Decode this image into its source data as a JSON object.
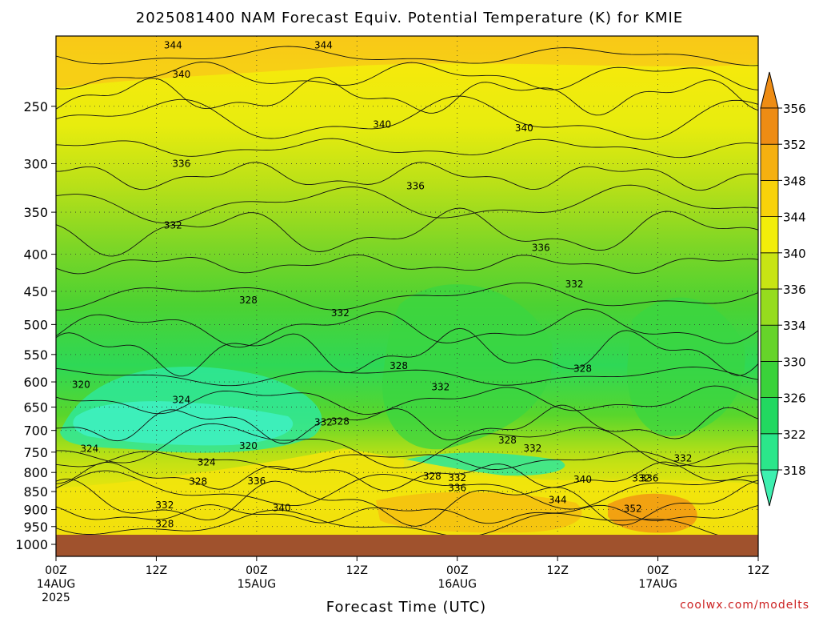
{
  "chart_data": {
    "type": "heatmap",
    "title": "2025081400 NAM Forecast Equiv. Potential Temperature (K) for KMIE",
    "xlabel": "Forecast Time (UTC)",
    "ylabel": "",
    "credit": "coolwx.com/modelts",
    "y_scale": "log",
    "ylim": [
      1000,
      200
    ],
    "yticks": [
      250,
      300,
      350,
      400,
      450,
      500,
      550,
      600,
      650,
      700,
      750,
      800,
      850,
      900,
      950,
      1000
    ],
    "xlim": [
      0,
      84
    ],
    "xticks": [
      {
        "hour": 0,
        "lines": [
          "00Z",
          "14AUG",
          "2025"
        ]
      },
      {
        "hour": 12,
        "lines": [
          "12Z"
        ]
      },
      {
        "hour": 24,
        "lines": [
          "00Z",
          "15AUG"
        ]
      },
      {
        "hour": 36,
        "lines": [
          "12Z"
        ]
      },
      {
        "hour": 48,
        "lines": [
          "00Z",
          "16AUG"
        ]
      },
      {
        "hour": 60,
        "lines": [
          "12Z"
        ]
      },
      {
        "hour": 72,
        "lines": [
          "00Z",
          "17AUG"
        ]
      },
      {
        "hour": 84,
        "lines": [
          "12Z"
        ]
      }
    ],
    "grid": true,
    "colorbar": {
      "levels": [
        318,
        322,
        326,
        330,
        334,
        336,
        340,
        344,
        348,
        352,
        356
      ],
      "colors": [
        "#3ef0b0",
        "#2be68a",
        "#22d860",
        "#3ad23a",
        "#66d42a",
        "#96dc1e",
        "#c8e414",
        "#f2ee0a",
        "#f8d20a",
        "#f5b010",
        "#ee8c14"
      ]
    },
    "ground_color": "#a0522d",
    "contour_labels": [
      {
        "value": "344",
        "hour": 14,
        "pressure": 206
      },
      {
        "value": "344",
        "hour": 32,
        "pressure": 206
      },
      {
        "value": "340",
        "hour": 15,
        "pressure": 226
      },
      {
        "value": "340",
        "hour": 39,
        "pressure": 265
      },
      {
        "value": "340",
        "hour": 56,
        "pressure": 268
      },
      {
        "value": "336",
        "hour": 15,
        "pressure": 300
      },
      {
        "value": "336",
        "hour": 43,
        "pressure": 322
      },
      {
        "value": "336",
        "hour": 58,
        "pressure": 392
      },
      {
        "value": "332",
        "hour": 14,
        "pressure": 365
      },
      {
        "value": "332",
        "hour": 34,
        "pressure": 482
      },
      {
        "value": "332",
        "hour": 62,
        "pressure": 440
      },
      {
        "value": "328",
        "hour": 23,
        "pressure": 463
      },
      {
        "value": "328",
        "hour": 41,
        "pressure": 570
      },
      {
        "value": "328",
        "hour": 34,
        "pressure": 680
      },
      {
        "value": "328",
        "hour": 63,
        "pressure": 575
      },
      {
        "value": "328",
        "hour": 54,
        "pressure": 722
      },
      {
        "value": "328",
        "hour": 45,
        "pressure": 810
      },
      {
        "value": "328",
        "hour": 17,
        "pressure": 823
      },
      {
        "value": "328",
        "hour": 13,
        "pressure": 942
      },
      {
        "value": "324",
        "hour": 15,
        "pressure": 635
      },
      {
        "value": "324",
        "hour": 4,
        "pressure": 742
      },
      {
        "value": "324",
        "hour": 18,
        "pressure": 775
      },
      {
        "value": "320",
        "hour": 3,
        "pressure": 605
      },
      {
        "value": "320",
        "hour": 23,
        "pressure": 735
      },
      {
        "value": "332",
        "hour": 32,
        "pressure": 682
      },
      {
        "value": "332",
        "hour": 46,
        "pressure": 610
      },
      {
        "value": "332",
        "hour": 48,
        "pressure": 814
      },
      {
        "value": "332",
        "hour": 57,
        "pressure": 741
      },
      {
        "value": "332",
        "hour": 70,
        "pressure": 815
      },
      {
        "value": "332",
        "hour": 75,
        "pressure": 765
      },
      {
        "value": "332",
        "hour": 13,
        "pressure": 888
      },
      {
        "value": "336",
        "hour": 24,
        "pressure": 822
      },
      {
        "value": "336",
        "hour": 48,
        "pressure": 840
      },
      {
        "value": "336",
        "hour": 71,
        "pressure": 815
      },
      {
        "value": "340",
        "hour": 27,
        "pressure": 895
      },
      {
        "value": "340",
        "hour": 63,
        "pressure": 818
      },
      {
        "value": "344",
        "hour": 60,
        "pressure": 873
      },
      {
        "value": "352",
        "hour": 69,
        "pressure": 898
      }
    ]
  }
}
